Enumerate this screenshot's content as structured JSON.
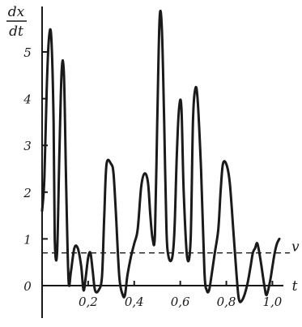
{
  "chart_data": {
    "type": "line",
    "title": "",
    "ylabel_numerator": "dx",
    "ylabel_denominator": "dt",
    "xlabel": "t",
    "xlim": [
      0,
      1.06
    ],
    "ylim": [
      -0.3,
      6.0
    ],
    "x_ticks": [
      {
        "value": 0.2,
        "label": "0,2"
      },
      {
        "value": 0.4,
        "label": "0,4"
      },
      {
        "value": 0.6,
        "label": "0,6"
      },
      {
        "value": 0.8,
        "label": "0,8"
      },
      {
        "value": 1.0,
        "label": "1,0"
      }
    ],
    "y_ticks": [
      {
        "value": 0,
        "label": "0"
      },
      {
        "value": 1,
        "label": "1"
      },
      {
        "value": 2,
        "label": "2"
      },
      {
        "value": 3,
        "label": "3"
      },
      {
        "value": 4,
        "label": "4"
      },
      {
        "value": 5,
        "label": "5"
      }
    ],
    "grid": false,
    "reference_line": {
      "value": 0.7,
      "label": "v",
      "style": "dashed"
    },
    "series": [
      {
        "x": [
          0.0,
          0.01,
          0.02,
          0.03,
          0.04,
          0.05,
          0.055,
          0.065,
          0.075,
          0.085,
          0.095,
          0.105,
          0.115,
          0.125,
          0.14,
          0.155,
          0.17,
          0.18,
          0.19,
          0.2,
          0.21,
          0.22,
          0.23,
          0.245,
          0.26,
          0.27,
          0.28,
          0.3,
          0.31,
          0.32,
          0.335,
          0.35,
          0.36,
          0.37,
          0.385,
          0.4,
          0.415,
          0.43,
          0.445,
          0.46,
          0.47,
          0.48,
          0.49,
          0.5,
          0.51,
          0.52,
          0.53,
          0.54,
          0.55,
          0.565,
          0.575,
          0.585,
          0.595,
          0.605,
          0.615,
          0.63,
          0.645,
          0.655,
          0.665,
          0.675,
          0.69,
          0.705,
          0.715,
          0.725,
          0.735,
          0.75,
          0.765,
          0.775,
          0.785,
          0.8,
          0.815,
          0.83,
          0.845,
          0.855,
          0.87,
          0.89,
          0.905,
          0.915,
          0.925,
          0.935,
          0.95,
          0.965,
          0.975,
          0.99,
          1.0,
          1.01,
          1.02,
          1.03
        ],
        "y": [
          1.6,
          2.3,
          4.2,
          5.3,
          5.3,
          3.5,
          1.0,
          0.7,
          2.8,
          4.6,
          4.5,
          2.0,
          0.1,
          0.3,
          0.8,
          0.8,
          0.4,
          -0.1,
          0.2,
          0.6,
          0.7,
          0.3,
          -0.1,
          -0.1,
          0.2,
          1.5,
          2.6,
          2.6,
          2.4,
          1.6,
          0.2,
          -0.2,
          -0.2,
          0.2,
          0.6,
          0.9,
          1.2,
          2.1,
          2.4,
          2.2,
          1.5,
          1.0,
          1.1,
          3.5,
          5.7,
          5.5,
          3.5,
          1.2,
          0.6,
          0.6,
          1.2,
          2.8,
          3.8,
          3.8,
          2.0,
          0.6,
          1.0,
          3.5,
          4.2,
          4.0,
          2.5,
          0.3,
          -0.1,
          -0.1,
          0.2,
          0.7,
          1.2,
          2.0,
          2.6,
          2.6,
          2.2,
          1.2,
          0.2,
          -0.3,
          -0.3,
          0.0,
          0.4,
          0.7,
          0.8,
          0.9,
          0.5,
          0.0,
          -0.2,
          0.1,
          0.4,
          0.7,
          0.9,
          1.0
        ]
      }
    ]
  }
}
